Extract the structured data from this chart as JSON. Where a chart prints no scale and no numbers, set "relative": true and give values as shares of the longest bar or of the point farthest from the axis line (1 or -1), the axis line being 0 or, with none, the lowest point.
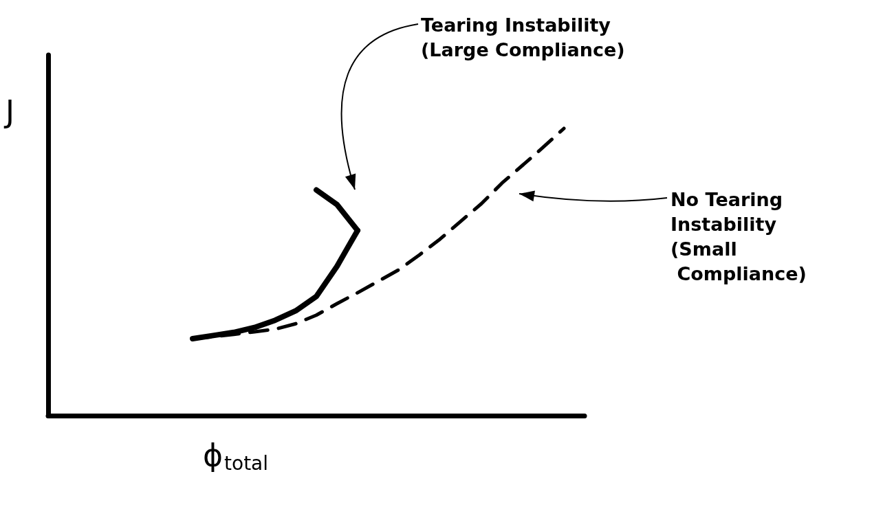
{
  "chart_data": {
    "type": "line",
    "relative": true,
    "xlabel": "ϕ$_{total}$",
    "ylabel": "J",
    "marker": "none",
    "categories": [
      null,
      null,
      null,
      null,
      null,
      null,
      null,
      null,
      null,
      null,
      null,
      null,
      null,
      null,
      null,
      null,
      null,
      null,
      null,
      null,
      null,
      null,
      null,
      null,
      null,
      null,
      null
    ],
    "series": [
      {
        "color": "#000000",
        "line_style": "solid",
        "values": [
          null,
          null,
          null,
          null,
          null,
          null,
          null,
          0.268,
          0.279,
          0.29,
          0.307,
          0.332,
          0.365,
          0.415,
          0.52,
          0.645,
          null,
          null,
          null,
          null,
          null,
          null,
          null,
          null,
          null,
          null,
          null
        ]
      },
      {
        "color": "#000000",
        "line_style": "solid",
        "values": [
          null,
          null,
          null,
          null,
          null,
          null,
          null,
          null,
          null,
          null,
          null,
          null,
          null,
          0.786,
          0.735,
          0.645,
          null,
          null,
          null,
          null,
          null,
          null,
          null,
          null,
          null,
          null,
          null
        ]
      },
      {
        "color": "#000000",
        "line_style": "dashed",
        "values": [
          null,
          null,
          null,
          null,
          null,
          null,
          null,
          0.268,
          0.275,
          0.283,
          0.292,
          0.301,
          0.32,
          0.35,
          0.39,
          0.428,
          0.468,
          0.508,
          0.56,
          0.615,
          0.677,
          0.738,
          0.81,
          0.872,
          0.935,
          1,
          null
        ]
      }
    ],
    "annotations": [
      "Tearing Instability\n(Large Compliance)",
      "No Tearing\nInstability\n(Small\n Compliance)"
    ]
  }
}
